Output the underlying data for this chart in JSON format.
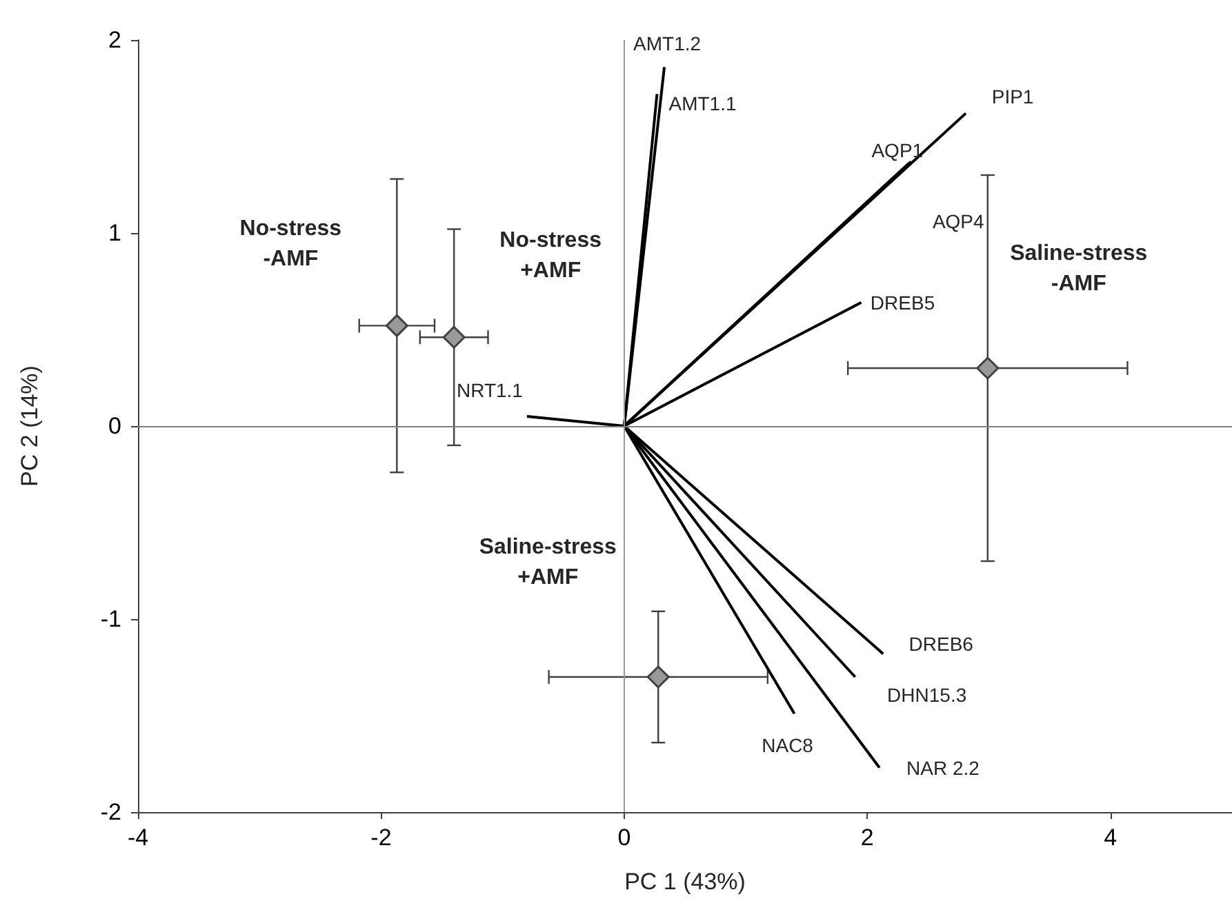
{
  "chart_data": {
    "type": "scatter",
    "xlabel": "PC 1 (43%)",
    "ylabel": "PC 2 (14%)",
    "xlim": [
      -4,
      5
    ],
    "xticks": [
      -4,
      -2,
      0,
      2,
      4
    ],
    "ylim": [
      -2,
      2
    ],
    "yticks": [
      -2,
      -1,
      0,
      1,
      2
    ],
    "grid": false,
    "legend": false,
    "ref_lines": [
      {
        "axis": "x",
        "value": 0,
        "color": "#999999"
      },
      {
        "axis": "y",
        "value": 0,
        "color": "#808080"
      }
    ],
    "series": [
      {
        "type": "scatter",
        "color": "#999999",
        "marker": "diamond",
        "x": [
          -1.87,
          -1.4,
          2.99,
          0.28
        ],
        "values": [
          0.52,
          0.46,
          0.3,
          -1.3
        ],
        "errors": [
          0.76,
          0.56,
          1.0,
          0.34
        ],
        "xerrors": [
          0.31,
          0.28,
          1.15,
          0.9
        ]
      },
      {
        "type": "line",
        "name": "AMT1.2",
        "color": "#000000",
        "x": [
          0,
          0.33
        ],
        "values": [
          0,
          1.86
        ]
      },
      {
        "type": "line",
        "name": "AMT1.1",
        "color": "#000000",
        "x": [
          0,
          0.27
        ],
        "values": [
          0,
          1.72
        ]
      },
      {
        "type": "line",
        "name": "PIP1",
        "color": "#000000",
        "x": [
          0,
          2.81
        ],
        "values": [
          0,
          1.62
        ]
      },
      {
        "type": "line",
        "name": "AQP1",
        "color": "#000000",
        "x": [
          0,
          2.36
        ],
        "values": [
          0,
          1.37
        ]
      },
      {
        "type": "line",
        "name": "AQP4",
        "color": "#000000",
        "x": [
          0,
          2.34
        ],
        "values": [
          0,
          1.36
        ]
      },
      {
        "type": "line",
        "name": "DREB5",
        "color": "#000000",
        "x": [
          0,
          1.95
        ],
        "values": [
          0,
          0.64
        ]
      },
      {
        "type": "line",
        "name": "NRT1.1",
        "color": "#000000",
        "x": [
          0,
          -0.8
        ],
        "values": [
          0,
          0.05
        ]
      },
      {
        "type": "line",
        "name": "DREB6",
        "color": "#000000",
        "x": [
          0,
          2.13
        ],
        "values": [
          0,
          -1.18
        ]
      },
      {
        "type": "line",
        "name": "DHN15.3",
        "color": "#000000",
        "x": [
          0,
          1.9
        ],
        "values": [
          0,
          -1.3
        ]
      },
      {
        "type": "line",
        "name": "NAR 2.2",
        "color": "#000000",
        "x": [
          0,
          2.1
        ],
        "values": [
          0,
          -1.77
        ]
      },
      {
        "type": "line",
        "name": "NAC8",
        "color": "#000000",
        "x": [
          0,
          1.4
        ],
        "values": [
          0,
          -1.49
        ]
      }
    ],
    "annotations": [
      "No-stress\n-AMF",
      "No-stress\n+AMF",
      "Saline-stress\n-AMF",
      "Saline-stress\n+AMF"
    ]
  }
}
